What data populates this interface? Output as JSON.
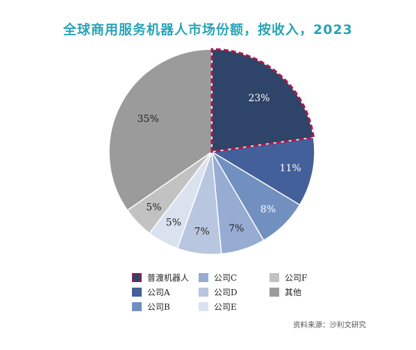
{
  "chart_data": {
    "type": "pie",
    "title": "全球商用服务机器人市场份额，按收入，2023",
    "slices": [
      {
        "name": "普渡机器人",
        "value": 23,
        "label": "23%",
        "color": "#2e4468",
        "highlight": true
      },
      {
        "name": "公司A",
        "value": 11,
        "label": "11%",
        "color": "#44609a"
      },
      {
        "name": "公司B",
        "value": 8,
        "label": "8%",
        "color": "#7190c0"
      },
      {
        "name": "公司C",
        "value": 7,
        "label": "7%",
        "color": "#97acd3"
      },
      {
        "name": "公司D",
        "value": 7,
        "label": "7%",
        "color": "#b9c6e0"
      },
      {
        "name": "公司E",
        "value": 5,
        "label": "5%",
        "color": "#dbe2ef"
      },
      {
        "name": "公司F",
        "value": 5,
        "label": "5%",
        "color": "#c2c2c2"
      },
      {
        "name": "其他",
        "value": 35,
        "label": "35%",
        "color": "#9b9b9b"
      }
    ],
    "start": "12 o'clock",
    "direction": "clockwise",
    "legend_position": "bottom"
  },
  "source": "资料来源：沙利文研究"
}
